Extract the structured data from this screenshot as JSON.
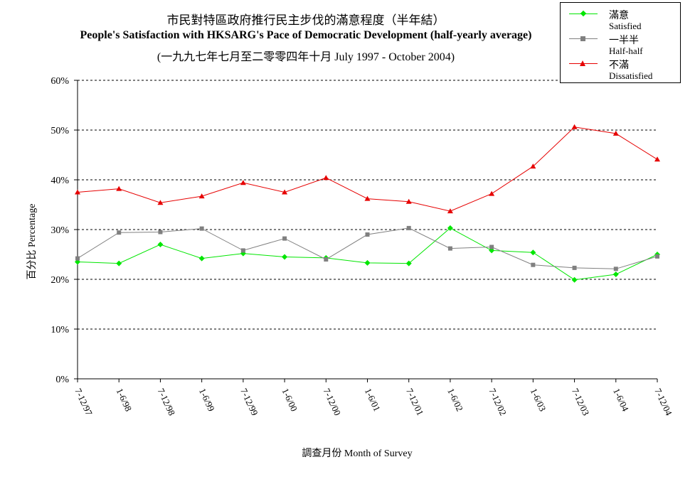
{
  "titles": {
    "zh": "市民對特區政府推行民主步伐的滿意程度（半年結）",
    "en": "People's Satisfaction with HKSARG's Pace of Democratic Development (half-yearly average)",
    "period": "(一九九七年七月至二零零四年十月 July 1997 - October 2004)"
  },
  "axes": {
    "ylabel": "百分比 Percentage",
    "xlabel": "調查月份 Month of Survey"
  },
  "legend": [
    {
      "zh": "滿意",
      "en": "Satisfied",
      "color": "#00e600",
      "marker": "diamond"
    },
    {
      "zh": "一半半",
      "en": "Half-half",
      "color": "#808080",
      "marker": "square"
    },
    {
      "zh": "不滿",
      "en": "Dissatisfied",
      "color": "#e60000",
      "marker": "triangle"
    }
  ],
  "chart_data": {
    "type": "line",
    "categories": [
      "7-12/97",
      "1-6/98",
      "7-12/98",
      "1-6/99",
      "7-12/99",
      "1-6/00",
      "7-12/00",
      "1-6/01",
      "7-12/01",
      "1-6/02",
      "7-12/02",
      "1-6/03",
      "7-12/03",
      "1-6/04",
      "7-12/04"
    ],
    "series": [
      {
        "name": "滿意 Satisfied",
        "color": "#00e600",
        "marker": "diamond",
        "values": [
          23.5,
          23.2,
          27.0,
          24.2,
          25.2,
          24.5,
          24.3,
          23.3,
          23.2,
          30.3,
          25.8,
          25.4,
          19.9,
          21.0,
          25.0
        ]
      },
      {
        "name": "一半半 Half-half",
        "color": "#808080",
        "marker": "square",
        "values": [
          24.2,
          29.4,
          29.5,
          30.2,
          25.8,
          28.2,
          24.0,
          29.0,
          30.3,
          26.2,
          26.5,
          22.9,
          22.3,
          22.1,
          24.6
        ]
      },
      {
        "name": "不滿 Dissatisfied",
        "color": "#e60000",
        "marker": "triangle",
        "values": [
          37.5,
          38.2,
          35.4,
          36.7,
          39.4,
          37.5,
          40.4,
          36.2,
          35.6,
          33.7,
          37.2,
          42.7,
          50.6,
          49.3,
          44.1
        ]
      }
    ],
    "ylim": [
      0,
      60
    ],
    "yticks": [
      "0%",
      "10%",
      "20%",
      "30%",
      "40%",
      "50%",
      "60%"
    ],
    "grid": "horizontal dashed",
    "legend_position": "top-right"
  }
}
